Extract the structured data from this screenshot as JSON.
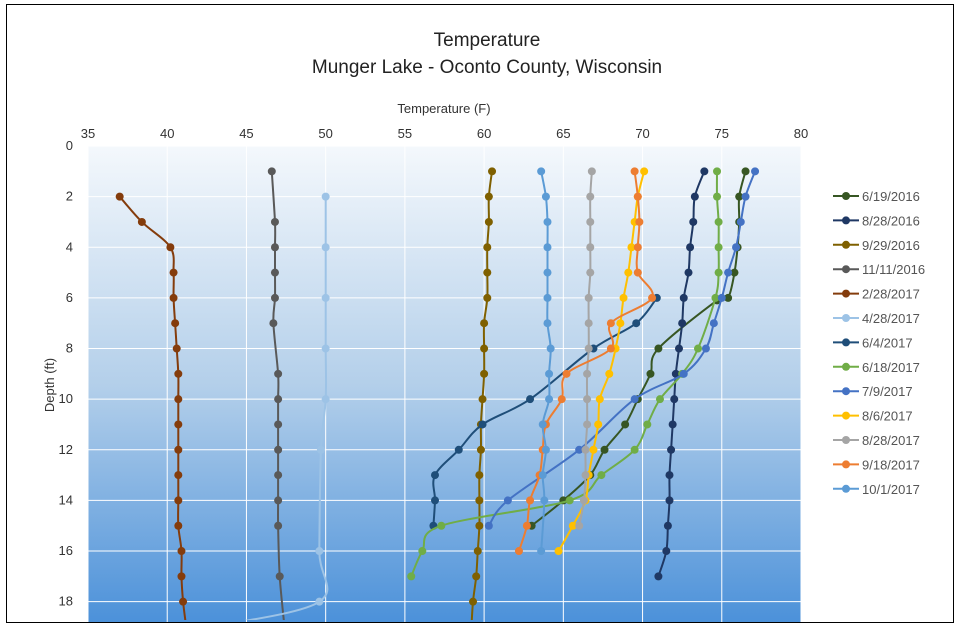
{
  "chart_data": {
    "type": "line",
    "title": "Temperature",
    "subtitle": "Munger Lake - Oconto County, Wisconsin",
    "xlabel": "Temperature (F)",
    "ylabel": "Depth (ft)",
    "xlim": [
      35,
      80
    ],
    "ylim": [
      0,
      19
    ],
    "y_inverted": true,
    "x_axis_position": "top",
    "x_ticks": [
      "35",
      "40",
      "45",
      "50",
      "55",
      "60",
      "65",
      "70",
      "75",
      "80"
    ],
    "y_ticks": [
      "0",
      "2",
      "4",
      "6",
      "8",
      "10",
      "12",
      "14",
      "16",
      "18"
    ],
    "grid": true,
    "plot_background": "blue-gradient",
    "legend_position": "right",
    "depths": [
      1,
      2,
      3,
      4,
      5,
      6,
      7,
      8,
      9,
      10,
      11,
      12,
      13,
      14,
      15,
      16,
      17,
      18,
      19
    ],
    "series": [
      {
        "name": "6/19/2016",
        "color": "#375623",
        "values": [
          76.5,
          76.1,
          76.1,
          76.0,
          75.8,
          75.4,
          null,
          71.0,
          70.5,
          69.7,
          68.9,
          67.6,
          66.7,
          null,
          null,
          null,
          null,
          null,
          null
        ],
        "points": [
          [
            74.7,
            6.1
          ],
          [
            65.0,
            14.0
          ],
          [
            63.0,
            15.0
          ]
        ]
      },
      {
        "name": "8/28/2016",
        "color": "#1F3864",
        "values": [
          73.9,
          73.3,
          73.2,
          73.0,
          72.9,
          72.6,
          72.5,
          72.3,
          72.1,
          72.0,
          71.9,
          71.8,
          71.7,
          71.7,
          71.6,
          71.5,
          71.0,
          null,
          null
        ]
      },
      {
        "name": "9/29/2016",
        "color": "#7F6000",
        "values": [
          60.5,
          60.3,
          60.3,
          60.2,
          60.2,
          60.2,
          60.0,
          60.0,
          60.0,
          59.9,
          59.8,
          59.8,
          59.7,
          59.7,
          59.7,
          59.6,
          59.5,
          59.3,
          59.2
        ]
      },
      {
        "name": "11/11/2016",
        "color": "#595959",
        "values": [
          46.6,
          null,
          46.8,
          46.8,
          46.8,
          46.8,
          46.7,
          null,
          47.0,
          47.0,
          47.0,
          47.0,
          47.0,
          47.0,
          47.0,
          null,
          47.1,
          null,
          47.4
        ]
      },
      {
        "name": "2/28/2017",
        "color": "#843C0C",
        "values": [
          null,
          37.0,
          38.4,
          40.2,
          40.4,
          40.4,
          40.5,
          40.6,
          40.7,
          40.7,
          40.7,
          40.7,
          40.7,
          40.7,
          40.7,
          40.9,
          40.9,
          41.0,
          41.2
        ]
      },
      {
        "name": "4/28/2017",
        "color": "#9DC3E6",
        "values": [
          null,
          50.0,
          null,
          50.0,
          null,
          50.0,
          null,
          50.0,
          null,
          50.0,
          null,
          49.7,
          null,
          null,
          null,
          49.6,
          null,
          49.6,
          42.7
        ]
      },
      {
        "name": "6/4/2017",
        "color": "#1F4E79",
        "values": [
          null,
          null,
          null,
          null,
          null,
          70.9,
          69.6,
          66.9,
          null,
          62.9,
          59.9,
          58.4,
          56.9,
          56.9,
          56.8,
          null,
          null,
          null,
          null
        ]
      },
      {
        "name": "6/18/2017",
        "color": "#70AD47",
        "values": [
          74.7,
          74.7,
          74.8,
          74.8,
          74.8,
          74.6,
          null,
          73.5,
          72.5,
          71.1,
          70.3,
          69.5,
          67.4,
          65.4,
          57.3,
          56.1,
          55.4,
          null,
          null
        ]
      },
      {
        "name": "7/9/2017",
        "color": "#4472C4",
        "values": [
          77.1,
          76.5,
          76.2,
          75.9,
          75.4,
          75.0,
          74.5,
          74.0,
          72.6,
          69.5,
          null,
          66.0,
          null,
          61.5,
          60.3,
          null,
          null,
          null,
          null
        ]
      },
      {
        "name": "8/6/2017",
        "color": "#FFC000",
        "values": [
          70.1,
          69.7,
          69.5,
          69.3,
          69.1,
          68.8,
          68.6,
          68.3,
          67.9,
          67.3,
          67.2,
          66.9,
          66.6,
          66.4,
          65.6,
          64.7,
          null,
          null,
          null
        ]
      },
      {
        "name": "8/28/2017",
        "color": "#A5A5A5",
        "values": [
          66.8,
          66.7,
          66.7,
          66.7,
          66.7,
          66.6,
          66.6,
          66.6,
          66.5,
          66.5,
          66.5,
          66.4,
          66.4,
          66.3,
          66.0,
          null,
          null,
          null,
          null
        ]
      },
      {
        "name": "9/18/2017",
        "color": "#ED7D31",
        "values": [
          69.5,
          69.7,
          69.8,
          69.7,
          69.7,
          70.6,
          68.0,
          68.0,
          65.2,
          64.9,
          63.9,
          63.7,
          63.5,
          62.9,
          62.7,
          62.2,
          null,
          null,
          null
        ]
      },
      {
        "name": "10/1/2017",
        "color": "#5B9BD5",
        "values": [
          63.6,
          63.9,
          64.0,
          64.0,
          64.0,
          64.0,
          64.0,
          64.2,
          64.1,
          64.1,
          63.7,
          63.9,
          63.7,
          63.8,
          null,
          63.6,
          null,
          null,
          null
        ]
      }
    ]
  }
}
